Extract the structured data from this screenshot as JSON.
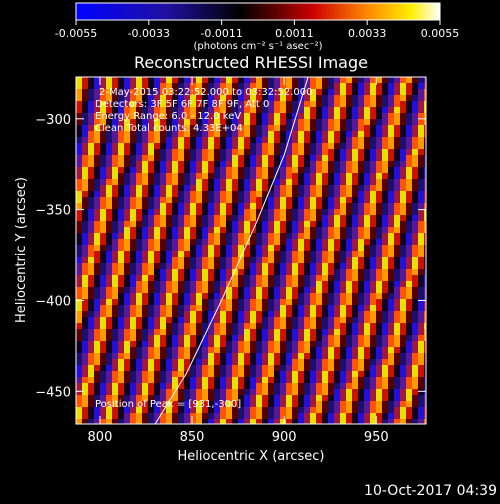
{
  "colorbar": {
    "ticks": [
      "-0.0055",
      "-0.0033",
      "-0.0011",
      "0.0011",
      "0.0033",
      "0.0055"
    ],
    "label": "(photons cm⁻² s⁻¹ asec⁻²)",
    "range": [
      -0.0055,
      0.0055
    ]
  },
  "overlay": {
    "line1": "2-May-2015 03:22:52.000 to 03:32:52.000",
    "line2": "Detectors: 3F 5F 6F 7F 8F 9F, Att 0",
    "line3": "Energy Range: 6.0 - 12.0 keV",
    "line4": "Clean    Total counts: 4.33E+04",
    "peak": "Position of Peak = [931,-300]"
  },
  "footer": {
    "timestamp": "10-Oct-2017 04:39"
  },
  "chart_data": {
    "type": "heatmap",
    "title": "Reconstructed RHESSI Image",
    "xlabel": "Heliocentric X (arcsec)",
    "ylabel": "Heliocentric Y (arcsec)",
    "xlim": [
      787,
      977
    ],
    "ylim": [
      -468,
      -277
    ],
    "xticks": [
      800,
      850,
      900,
      950
    ],
    "yticks": [
      -300,
      -350,
      -400,
      -450
    ],
    "colormap": "blue-purple-red-yellow-white",
    "pattern": "periodic diagonal stripes",
    "limb_curve": [
      [
        830,
        -468
      ],
      [
        847,
        -440
      ],
      [
        866,
        -400
      ],
      [
        885,
        -357
      ],
      [
        900,
        -320
      ],
      [
        913,
        -277
      ]
    ]
  }
}
